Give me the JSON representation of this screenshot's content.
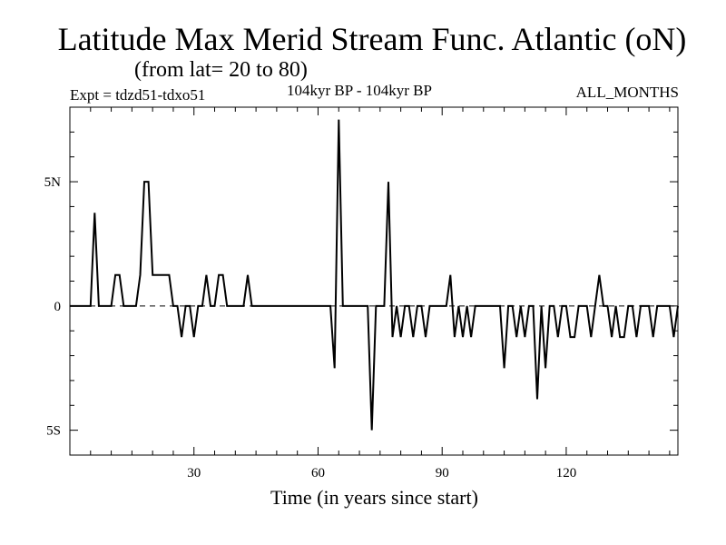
{
  "chart_data": {
    "type": "line",
    "title": "Latitude Max Merid Stream Func. Atlantic (oN)",
    "subtitle": "(from lat= 20 to 80)",
    "expt_label": "Expt = tdzd51-tdxo51",
    "period_label": "104kyr BP - 104kyr BP",
    "months_label": "ALL_MONTHS",
    "xlabel": "Time (in years since start)",
    "ylabel": "",
    "xlim": [
      0,
      147
    ],
    "ylim": [
      -6,
      8
    ],
    "x_ticks": [
      30,
      60,
      90,
      120
    ],
    "x_tick_labels": [
      "30",
      "60",
      "90",
      "120"
    ],
    "y_ticks": [
      5,
      0,
      -5
    ],
    "y_tick_labels": [
      "5N",
      "0",
      "5S"
    ],
    "zero_line": "dashed",
    "series": [
      {
        "name": "lat_max",
        "x": [
          0,
          5,
          6,
          7,
          10,
          11,
          12,
          13,
          16,
          17,
          18,
          19,
          20,
          21,
          22,
          23,
          24,
          25,
          26,
          27,
          28,
          29,
          30,
          31,
          32,
          33,
          34,
          35,
          36,
          37,
          38,
          39,
          40,
          41,
          42,
          43,
          44,
          45,
          46,
          47,
          48,
          60,
          63,
          64,
          65,
          66,
          67,
          72,
          73,
          74,
          76,
          77,
          78,
          79,
          80,
          81,
          82,
          83,
          84,
          85,
          86,
          87,
          88,
          89,
          90,
          91,
          92,
          93,
          94,
          95,
          96,
          97,
          98,
          99,
          100,
          101,
          104,
          105,
          106,
          107,
          108,
          109,
          110,
          111,
          112,
          113,
          114,
          115,
          116,
          117,
          118,
          119,
          120,
          121,
          122,
          123,
          124,
          125,
          126,
          127,
          128,
          129,
          130,
          131,
          132,
          133,
          134,
          135,
          136,
          137,
          138,
          139,
          140,
          141,
          142,
          143,
          144,
          145,
          146,
          147
        ],
        "y": [
          0,
          0,
          3.75,
          0,
          0,
          1.25,
          1.25,
          0,
          0,
          1.25,
          5,
          5,
          1.25,
          1.25,
          1.25,
          1.25,
          1.25,
          0,
          0,
          -1.25,
          0,
          0,
          -1.25,
          0,
          0,
          1.25,
          0,
          0,
          1.25,
          1.25,
          0,
          0,
          0,
          0,
          0,
          1.25,
          0,
          0,
          0,
          0,
          0,
          0,
          0,
          -2.5,
          7.5,
          0,
          0,
          0,
          -5,
          0,
          0,
          5,
          -1.25,
          0,
          -1.25,
          0,
          0,
          -1.25,
          0,
          0,
          -1.25,
          0,
          0,
          0,
          0,
          0,
          1.25,
          -1.25,
          0,
          -1.25,
          0,
          -1.25,
          0,
          0,
          0,
          0,
          0,
          -2.5,
          0,
          0,
          -1.25,
          0,
          -1.25,
          0,
          0,
          -3.75,
          0,
          -2.5,
          0,
          0,
          -1.25,
          0,
          0,
          -1.25,
          -1.25,
          0,
          0,
          0,
          -1.25,
          0,
          1.25,
          0,
          0,
          -1.25,
          0,
          -1.25,
          -1.25,
          0,
          0,
          -1.25,
          0,
          0,
          0,
          -1.25,
          0,
          0,
          0,
          0,
          -1.25,
          0
        ]
      }
    ]
  }
}
